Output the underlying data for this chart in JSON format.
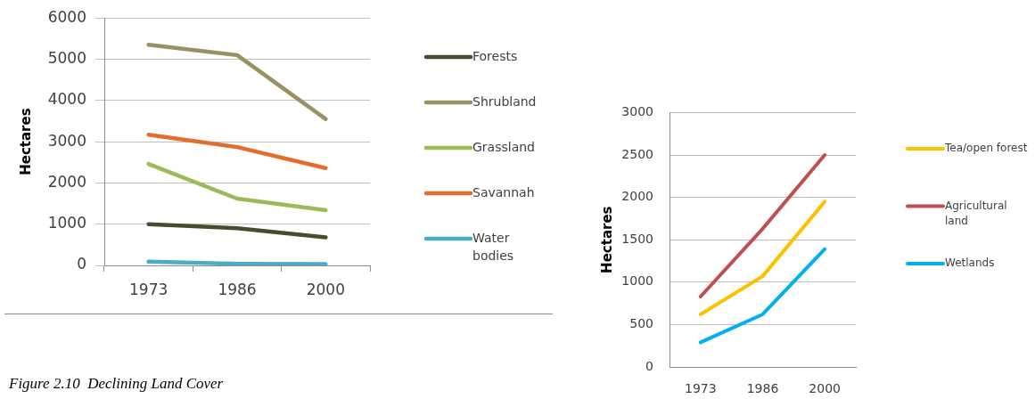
{
  "chart_data": [
    {
      "type": "line",
      "categories": [
        "1973",
        "1986",
        "2000"
      ],
      "ylabel": "Hectares",
      "ylim": [
        0,
        6000
      ],
      "yticks": [
        0,
        1000,
        2000,
        3000,
        4000,
        5000,
        6000
      ],
      "grid": "y",
      "legend": "right",
      "marker": "none",
      "line_style": "solid",
      "series": [
        {
          "name": "Forests",
          "color": "#4a4a2c",
          "values": [
            1000,
            900,
            680
          ]
        },
        {
          "name": "Shrubland",
          "color": "#9a9163",
          "values": [
            5350,
            5100,
            3550
          ]
        },
        {
          "name": "Grassland",
          "color": "#9bbb59",
          "values": [
            2460,
            1620,
            1340
          ]
        },
        {
          "name": "Savannah",
          "color": "#e46c2c",
          "values": [
            3170,
            2870,
            2360
          ]
        },
        {
          "name": "Water bodies",
          "color": "#4bacc6",
          "values": [
            90,
            40,
            30
          ]
        }
      ],
      "annotations": [
        "Figure 2.10  Declining Land Cover"
      ]
    },
    {
      "type": "line",
      "categories": [
        "1973",
        "1986",
        "2000"
      ],
      "ylabel": "Hectares",
      "ylim": [
        0,
        3000
      ],
      "yticks": [
        0,
        500,
        1000,
        1500,
        2000,
        2500,
        3000
      ],
      "grid": "y",
      "legend": "right",
      "marker": "none",
      "line_style": "solid",
      "series": [
        {
          "name": "Tea/open forest",
          "color": "#ffc000",
          "values": [
            620,
            1070,
            1950
          ]
        },
        {
          "name": "Agricultural land",
          "color": "#c0504d",
          "values": [
            830,
            1630,
            2500
          ]
        },
        {
          "name": "Wetlands",
          "color": "#00b0f0",
          "values": [
            290,
            620,
            1390
          ]
        }
      ]
    }
  ]
}
